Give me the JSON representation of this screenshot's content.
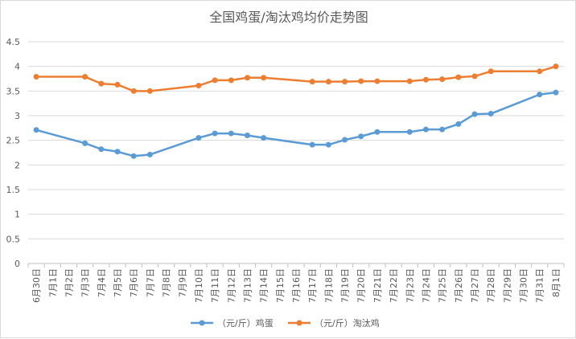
{
  "chart_data": {
    "type": "line",
    "title": "全国鸡蛋/淘汰鸡均价走势图",
    "xlabel": "",
    "ylabel": "",
    "ylim": [
      0,
      4.5
    ],
    "yticks": [
      "0",
      "0.5",
      "1",
      "1.5",
      "2",
      "2.5",
      "3",
      "3.5",
      "4",
      "4.5"
    ],
    "grid": true,
    "legend_position": "bottom",
    "categories": [
      "6月30日",
      "7月1日",
      "7月2日",
      "7月3日",
      "7月4日",
      "7月5日",
      "7月6日",
      "7月7日",
      "7月8日",
      "7月9日",
      "7月10日",
      "7月11日",
      "7月12日",
      "7月13日",
      "7月14日",
      "7月15日",
      "7月16日",
      "7月17日",
      "7月18日",
      "7月19日",
      "7月20日",
      "7月21日",
      "7月22日",
      "7月23日",
      "7月24日",
      "7月25日",
      "7月26日",
      "7月27日",
      "7月28日",
      "7月29日",
      "7月30日",
      "7月31日",
      "8月1日"
    ],
    "series": [
      {
        "name": "（元/斤）鸡蛋",
        "color": "#5b9bd5",
        "values": [
          2.71,
          null,
          null,
          2.44,
          2.32,
          2.27,
          2.18,
          2.21,
          null,
          null,
          2.55,
          2.64,
          2.64,
          2.6,
          2.55,
          null,
          null,
          2.41,
          2.41,
          2.51,
          2.58,
          2.67,
          null,
          2.67,
          2.72,
          2.72,
          2.83,
          3.03,
          3.04,
          null,
          null,
          3.43,
          3.47
        ]
      },
      {
        "name": "（元/斤）淘汰鸡",
        "color": "#ed7d31",
        "values": [
          3.79,
          null,
          null,
          3.79,
          3.65,
          3.63,
          3.5,
          3.5,
          null,
          null,
          3.61,
          3.72,
          3.72,
          3.77,
          3.77,
          null,
          null,
          3.69,
          3.69,
          3.69,
          3.7,
          3.7,
          null,
          3.7,
          3.73,
          3.74,
          3.78,
          3.8,
          3.9,
          null,
          null,
          3.9,
          4.0
        ]
      }
    ]
  }
}
